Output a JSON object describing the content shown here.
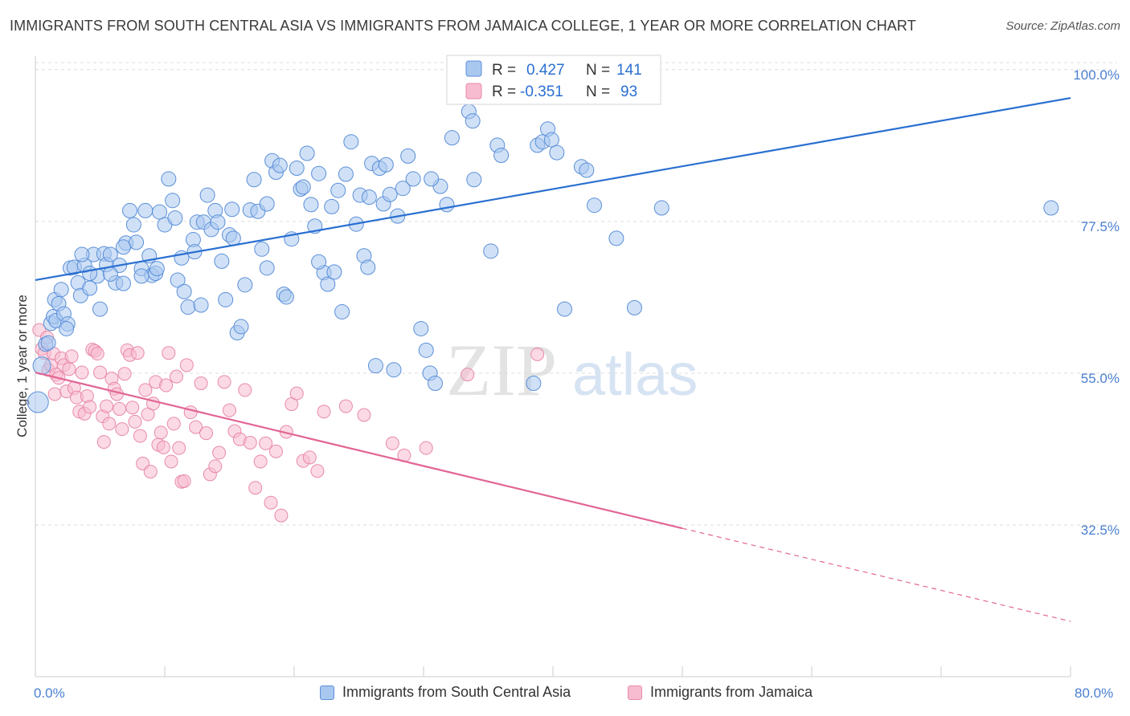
{
  "title": "IMMIGRANTS FROM SOUTH CENTRAL ASIA VS IMMIGRANTS FROM JAMAICA COLLEGE, 1 YEAR OR MORE CORRELATION CHART",
  "source": "Source: ZipAtlas.com",
  "watermark": {
    "zip": "ZIP",
    "atlas": "atlas"
  },
  "colors": {
    "blue_fill": "#a9c8f0",
    "blue_stroke": "#5b8fd8",
    "blue_line": "#2a6fd1",
    "pink_fill": "#f7bcd0",
    "pink_stroke": "#e88aa9",
    "pink_line": "#e26695",
    "tick_text": "#4a7fd0",
    "grid": "#dddddd"
  },
  "legend_box": {
    "rows": [
      {
        "r_label": "R =",
        "r_value": "0.427",
        "n_label": "N =",
        "n_value": "141"
      },
      {
        "r_label": "R =",
        "r_value": "-0.351",
        "n_label": "N =",
        "n_value": "93"
      }
    ]
  },
  "bottom_legend": [
    "Immigrants from South Central Asia",
    "Immigrants from Jamaica"
  ],
  "chart_data": {
    "type": "scatter",
    "title": "IMMIGRANTS FROM SOUTH CENTRAL ASIA VS IMMIGRANTS FROM JAMAICA COLLEGE, 1 YEAR OR MORE CORRELATION CHART",
    "xlabel": "",
    "ylabel": "College, 1 year or more",
    "xlim": [
      0,
      80
    ],
    "ylim": [
      10,
      102
    ],
    "x_tick_labels": [
      "0.0%",
      "80.0%"
    ],
    "y_ticks": [
      32.5,
      55.0,
      77.5,
      100.0
    ],
    "y_tick_labels": [
      "32.5%",
      "55.0%",
      "77.5%",
      "100.0%"
    ],
    "grid": true,
    "legend_position": "top-center",
    "series": [
      {
        "name": "Immigrants from South Central Asia",
        "R": 0.427,
        "N": 141,
        "trend": {
          "x": [
            0,
            80
          ],
          "y": [
            68.8,
            95.8
          ]
        },
        "points": [
          [
            0.2,
            50.7
          ],
          [
            0.5,
            56.1
          ],
          [
            0.8,
            59.3
          ],
          [
            1.0,
            59.5
          ],
          [
            1.2,
            62.4
          ],
          [
            1.4,
            63.4
          ],
          [
            1.5,
            65.9
          ],
          [
            1.6,
            62.8
          ],
          [
            1.8,
            65.3
          ],
          [
            2.0,
            67.4
          ],
          [
            2.2,
            63.8
          ],
          [
            2.5,
            62.3
          ],
          [
            2.7,
            70.6
          ],
          [
            3.0,
            70.7
          ],
          [
            3.3,
            68.4
          ],
          [
            3.5,
            66.5
          ],
          [
            3.8,
            71.0
          ],
          [
            4.2,
            67.6
          ],
          [
            4.5,
            72.6
          ],
          [
            4.8,
            69.4
          ],
          [
            5.0,
            64.5
          ],
          [
            5.3,
            72.7
          ],
          [
            5.5,
            71.1
          ],
          [
            5.8,
            72.6
          ],
          [
            6.2,
            68.4
          ],
          [
            6.5,
            71.0
          ],
          [
            6.8,
            68.3
          ],
          [
            7.0,
            74.3
          ],
          [
            7.3,
            79.1
          ],
          [
            7.6,
            77.0
          ],
          [
            7.8,
            74.4
          ],
          [
            8.2,
            70.5
          ],
          [
            8.5,
            79.1
          ],
          [
            8.8,
            72.4
          ],
          [
            9.0,
            69.5
          ],
          [
            9.3,
            69.8
          ],
          [
            9.6,
            78.9
          ],
          [
            10.0,
            77.0
          ],
          [
            10.3,
            83.8
          ],
          [
            10.6,
            80.6
          ],
          [
            11.0,
            68.8
          ],
          [
            11.3,
            72.1
          ],
          [
            11.5,
            67.1
          ],
          [
            11.8,
            64.8
          ],
          [
            12.2,
            74.8
          ],
          [
            12.5,
            77.4
          ],
          [
            12.8,
            65.1
          ],
          [
            13.0,
            77.4
          ],
          [
            13.3,
            81.4
          ],
          [
            13.6,
            76.3
          ],
          [
            13.9,
            79.1
          ],
          [
            14.1,
            77.4
          ],
          [
            14.4,
            71.6
          ],
          [
            14.7,
            65.9
          ],
          [
            15.0,
            75.5
          ],
          [
            15.3,
            75.0
          ],
          [
            15.6,
            61.0
          ],
          [
            15.9,
            61.9
          ],
          [
            16.2,
            68.1
          ],
          [
            16.6,
            79.2
          ],
          [
            16.9,
            83.7
          ],
          [
            17.2,
            79.0
          ],
          [
            17.5,
            73.4
          ],
          [
            17.9,
            80.1
          ],
          [
            18.3,
            86.5
          ],
          [
            18.6,
            84.8
          ],
          [
            18.9,
            85.8
          ],
          [
            19.2,
            66.7
          ],
          [
            19.4,
            66.3
          ],
          [
            19.8,
            74.9
          ],
          [
            20.2,
            85.4
          ],
          [
            20.5,
            82.3
          ],
          [
            20.7,
            82.6
          ],
          [
            21.0,
            87.6
          ],
          [
            21.3,
            80.0
          ],
          [
            21.6,
            76.8
          ],
          [
            21.9,
            84.6
          ],
          [
            22.3,
            69.9
          ],
          [
            22.6,
            68.2
          ],
          [
            22.9,
            79.7
          ],
          [
            23.1,
            70.0
          ],
          [
            23.4,
            82.1
          ],
          [
            23.7,
            64.1
          ],
          [
            24.0,
            84.5
          ],
          [
            24.4,
            89.3
          ],
          [
            24.8,
            77.1
          ],
          [
            25.1,
            81.4
          ],
          [
            25.4,
            72.4
          ],
          [
            25.7,
            70.7
          ],
          [
            26.0,
            86.1
          ],
          [
            26.3,
            56.1
          ],
          [
            26.6,
            85.4
          ],
          [
            26.9,
            80.1
          ],
          [
            27.1,
            85.9
          ],
          [
            27.4,
            81.5
          ],
          [
            27.7,
            55.5
          ],
          [
            28.0,
            78.3
          ],
          [
            28.4,
            82.4
          ],
          [
            28.8,
            87.2
          ],
          [
            29.2,
            83.8
          ],
          [
            29.8,
            61.6
          ],
          [
            30.2,
            58.4
          ],
          [
            30.5,
            55.0
          ],
          [
            30.9,
            53.5
          ],
          [
            31.3,
            82.7
          ],
          [
            31.8,
            80.0
          ],
          [
            32.2,
            89.9
          ],
          [
            33.5,
            93.8
          ],
          [
            33.9,
            83.7
          ],
          [
            35.2,
            73.1
          ],
          [
            35.7,
            88.8
          ],
          [
            36.0,
            87.3
          ],
          [
            38.5,
            53.5
          ],
          [
            38.8,
            88.8
          ],
          [
            39.2,
            89.3
          ],
          [
            39.6,
            91.2
          ],
          [
            39.9,
            89.6
          ],
          [
            40.3,
            87.7
          ],
          [
            40.9,
            64.5
          ],
          [
            42.2,
            85.6
          ],
          [
            42.6,
            85.1
          ],
          [
            43.2,
            79.9
          ],
          [
            44.9,
            75.0
          ],
          [
            46.3,
            64.7
          ],
          [
            48.4,
            79.5
          ],
          [
            78.5,
            79.5
          ],
          [
            3.6,
            72.6
          ],
          [
            5.8,
            69.7
          ],
          [
            9.4,
            70.5
          ],
          [
            12.3,
            73.0
          ],
          [
            15.2,
            79.3
          ],
          [
            17.9,
            70.6
          ],
          [
            21.9,
            71.5
          ],
          [
            25.8,
            81.1
          ],
          [
            30.6,
            83.8
          ],
          [
            33.8,
            92.4
          ],
          [
            2.4,
            61.6
          ],
          [
            4.2,
            69.8
          ],
          [
            6.8,
            73.7
          ],
          [
            8.2,
            69.4
          ],
          [
            10.8,
            78.0
          ]
        ]
      },
      {
        "name": "Immigrants from Jamaica",
        "R": -0.351,
        "N": 93,
        "trend": {
          "x": [
            0,
            50
          ],
          "y": [
            55.1,
            32.0
          ]
        },
        "trend_extension": {
          "x": [
            50,
            80
          ],
          "y": [
            32.0,
            18.2
          ]
        },
        "points": [
          [
            0.3,
            61.4
          ],
          [
            0.5,
            58.6
          ],
          [
            0.7,
            58.0
          ],
          [
            0.9,
            60.3
          ],
          [
            1.0,
            55.5
          ],
          [
            1.2,
            56.2
          ],
          [
            1.4,
            57.9
          ],
          [
            1.5,
            51.9
          ],
          [
            1.6,
            54.8
          ],
          [
            1.8,
            54.3
          ],
          [
            2.0,
            57.2
          ],
          [
            2.2,
            56.2
          ],
          [
            2.4,
            52.3
          ],
          [
            2.6,
            55.6
          ],
          [
            2.8,
            57.5
          ],
          [
            3.0,
            52.8
          ],
          [
            3.2,
            51.4
          ],
          [
            3.4,
            49.3
          ],
          [
            3.6,
            55.1
          ],
          [
            3.8,
            49.0
          ],
          [
            4.0,
            51.6
          ],
          [
            4.2,
            50.0
          ],
          [
            4.4,
            58.5
          ],
          [
            4.6,
            58.3
          ],
          [
            4.8,
            57.9
          ],
          [
            5.0,
            55.1
          ],
          [
            5.2,
            48.6
          ],
          [
            5.3,
            44.8
          ],
          [
            5.5,
            50.1
          ],
          [
            5.7,
            47.5
          ],
          [
            5.9,
            54.2
          ],
          [
            6.1,
            52.7
          ],
          [
            6.3,
            51.9
          ],
          [
            6.5,
            49.7
          ],
          [
            6.7,
            46.7
          ],
          [
            6.9,
            54.9
          ],
          [
            7.1,
            58.4
          ],
          [
            7.3,
            57.7
          ],
          [
            7.5,
            49.9
          ],
          [
            7.7,
            47.8
          ],
          [
            7.9,
            58.0
          ],
          [
            8.1,
            45.7
          ],
          [
            8.3,
            41.6
          ],
          [
            8.5,
            52.5
          ],
          [
            8.7,
            48.9
          ],
          [
            8.9,
            40.4
          ],
          [
            9.1,
            50.5
          ],
          [
            9.3,
            53.7
          ],
          [
            9.5,
            44.4
          ],
          [
            9.7,
            46.2
          ],
          [
            9.9,
            44.0
          ],
          [
            10.1,
            53.2
          ],
          [
            10.3,
            58.0
          ],
          [
            10.5,
            41.9
          ],
          [
            10.7,
            47.5
          ],
          [
            10.9,
            54.5
          ],
          [
            11.1,
            43.9
          ],
          [
            11.3,
            38.9
          ],
          [
            11.5,
            39.0
          ],
          [
            11.7,
            56.2
          ],
          [
            12.0,
            49.2
          ],
          [
            12.4,
            47.0
          ],
          [
            12.8,
            53.5
          ],
          [
            13.2,
            46.1
          ],
          [
            13.5,
            40.0
          ],
          [
            13.9,
            41.2
          ],
          [
            14.2,
            43.2
          ],
          [
            14.6,
            53.7
          ],
          [
            15.0,
            49.5
          ],
          [
            15.4,
            46.4
          ],
          [
            15.8,
            45.2
          ],
          [
            16.2,
            52.5
          ],
          [
            16.6,
            44.7
          ],
          [
            17.0,
            38.0
          ],
          [
            17.4,
            41.9
          ],
          [
            17.8,
            44.6
          ],
          [
            18.2,
            35.8
          ],
          [
            18.6,
            43.4
          ],
          [
            19.0,
            33.9
          ],
          [
            19.4,
            46.3
          ],
          [
            19.8,
            50.4
          ],
          [
            20.2,
            52.0
          ],
          [
            20.7,
            42.0
          ],
          [
            21.2,
            42.5
          ],
          [
            21.8,
            40.5
          ],
          [
            22.3,
            49.3
          ],
          [
            24.0,
            50.1
          ],
          [
            25.4,
            48.8
          ],
          [
            27.6,
            44.6
          ],
          [
            28.5,
            42.8
          ],
          [
            30.2,
            43.9
          ],
          [
            33.4,
            54.8
          ],
          [
            38.8,
            57.8
          ]
        ]
      }
    ]
  }
}
